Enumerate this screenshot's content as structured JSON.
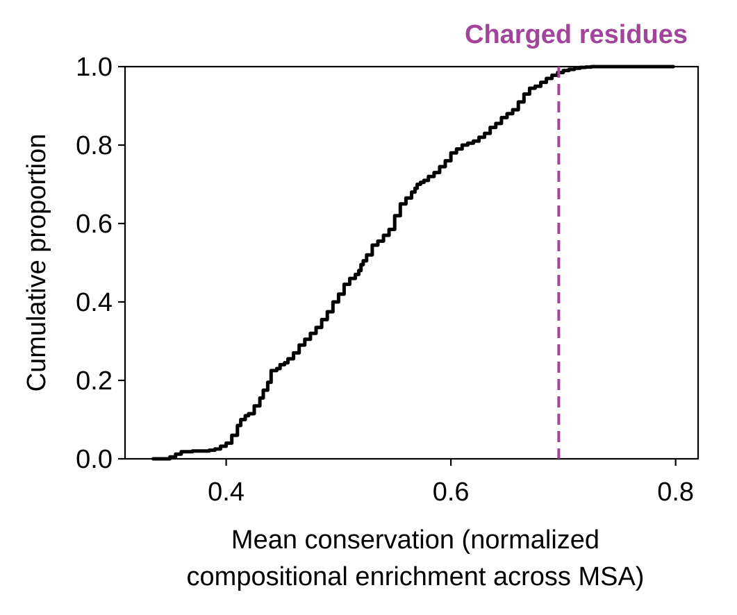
{
  "chart_data": {
    "type": "line",
    "title": "",
    "annotation": {
      "text": "Charged residues",
      "x": 0.696,
      "color": "#a2449a"
    },
    "xlabel": [
      "Mean conservation (normalized",
      "compositional enrichment across MSA)"
    ],
    "ylabel": "Cumulative proportion",
    "xlim": [
      0.31,
      0.82
    ],
    "ylim": [
      0.0,
      1.0
    ],
    "xticks": [
      0.4,
      0.6,
      0.8
    ],
    "xtick_labels": [
      "0.4",
      "0.6",
      "0.8"
    ],
    "yticks": [
      0.0,
      0.2,
      0.4,
      0.6,
      0.8,
      1.0
    ],
    "ytick_labels": [
      "0.0",
      "0.2",
      "0.4",
      "0.6",
      "0.8",
      "1.0"
    ],
    "grid": false,
    "line_color": "#000000",
    "series": [
      {
        "x": [
          0.335,
          0.35,
          0.355,
          0.36,
          0.37,
          0.385,
          0.39,
          0.395,
          0.4,
          0.405,
          0.41,
          0.413,
          0.417,
          0.42,
          0.425,
          0.43,
          0.433,
          0.437,
          0.44,
          0.445,
          0.448,
          0.452,
          0.455,
          0.46,
          0.465,
          0.47,
          0.475,
          0.48,
          0.485,
          0.49,
          0.495,
          0.5,
          0.505,
          0.51,
          0.515,
          0.518,
          0.52,
          0.522,
          0.525,
          0.53,
          0.535,
          0.54,
          0.545,
          0.55,
          0.555,
          0.56,
          0.565,
          0.568,
          0.57,
          0.573,
          0.576,
          0.58,
          0.585,
          0.59,
          0.595,
          0.6,
          0.605,
          0.61,
          0.615,
          0.62,
          0.625,
          0.63,
          0.635,
          0.64,
          0.645,
          0.65,
          0.655,
          0.66,
          0.665,
          0.67,
          0.675,
          0.68,
          0.685,
          0.69,
          0.695,
          0.7,
          0.705,
          0.71,
          0.715,
          0.72,
          0.725,
          0.73,
          0.735,
          0.74,
          0.75,
          0.77,
          0.798
        ],
        "y": [
          0.0,
          0.005,
          0.012,
          0.018,
          0.02,
          0.022,
          0.025,
          0.032,
          0.04,
          0.06,
          0.085,
          0.1,
          0.11,
          0.115,
          0.135,
          0.155,
          0.175,
          0.195,
          0.225,
          0.23,
          0.24,
          0.245,
          0.255,
          0.27,
          0.29,
          0.305,
          0.32,
          0.335,
          0.355,
          0.375,
          0.4,
          0.42,
          0.445,
          0.46,
          0.47,
          0.48,
          0.495,
          0.505,
          0.52,
          0.545,
          0.555,
          0.57,
          0.585,
          0.62,
          0.65,
          0.665,
          0.68,
          0.69,
          0.7,
          0.705,
          0.71,
          0.72,
          0.73,
          0.745,
          0.76,
          0.78,
          0.79,
          0.8,
          0.805,
          0.81,
          0.82,
          0.83,
          0.845,
          0.855,
          0.87,
          0.88,
          0.89,
          0.91,
          0.93,
          0.945,
          0.95,
          0.96,
          0.97,
          0.978,
          0.985,
          0.99,
          0.993,
          0.996,
          0.998,
          0.999,
          1.0,
          1.0,
          1.0,
          1.0,
          1.0,
          1.0,
          1.0
        ]
      }
    ]
  }
}
